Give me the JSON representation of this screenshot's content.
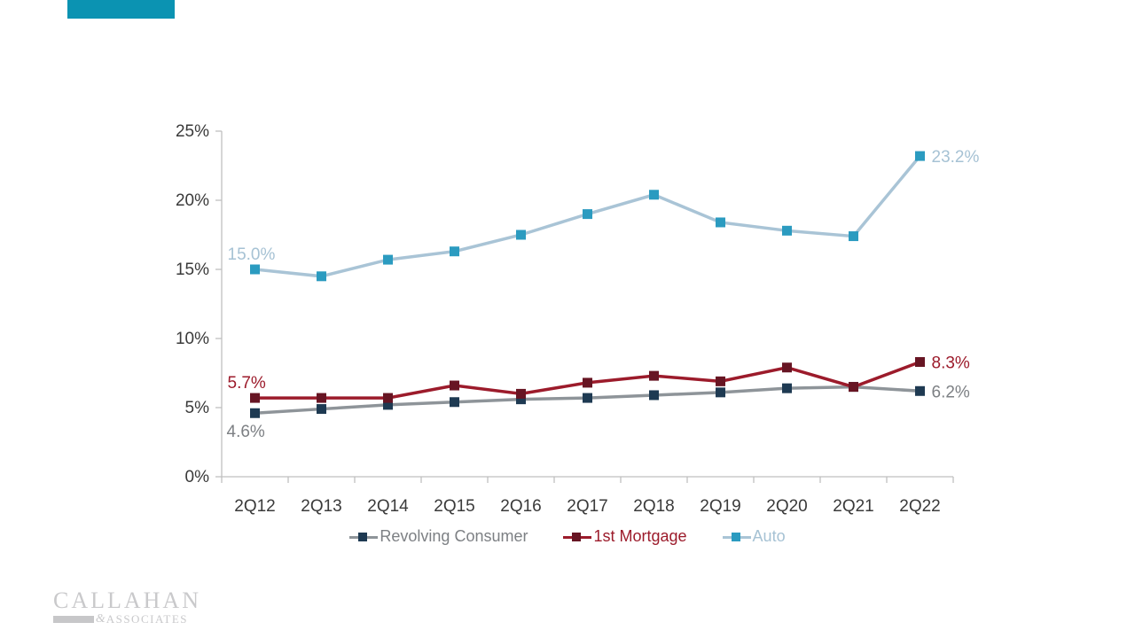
{
  "slide": {
    "accent_bar_color": "#0b93b2",
    "background_color": "#ffffff"
  },
  "logo": {
    "line1": "CALLAHAN",
    "ampersand": "&",
    "line2": "ASSOCIATES",
    "color": "#c9c9cb"
  },
  "chart_data": {
    "type": "line",
    "title": "",
    "xlabel": "",
    "ylabel": "",
    "categories": [
      "2Q12",
      "2Q13",
      "2Q14",
      "2Q15",
      "2Q16",
      "2Q17",
      "2Q18",
      "2Q19",
      "2Q20",
      "2Q21",
      "2Q22"
    ],
    "series": [
      {
        "name": "Revolving Consumer",
        "values": [
          4.6,
          4.9,
          5.2,
          5.4,
          5.6,
          5.7,
          5.9,
          6.1,
          6.4,
          6.5,
          6.2
        ],
        "line_color": "#8e9499",
        "marker_color": "#1e3a52",
        "label_color": "#7d8084",
        "point_labels": [
          {
            "point": "2Q12",
            "text": "4.6%",
            "placement": "below-left"
          },
          {
            "point": "2Q22",
            "text": "6.2%",
            "placement": "right"
          }
        ]
      },
      {
        "name": "1st Mortgage",
        "values": [
          5.7,
          5.7,
          5.7,
          6.6,
          6.0,
          6.8,
          7.3,
          6.9,
          7.9,
          6.5,
          8.3
        ],
        "line_color": "#9c1b2b",
        "marker_color": "#671523",
        "label_color": "#9c1b2b",
        "point_labels": [
          {
            "point": "2Q12",
            "text": "5.7%",
            "placement": "above-left"
          },
          {
            "point": "2Q22",
            "text": "8.3%",
            "placement": "right"
          }
        ]
      },
      {
        "name": "Auto",
        "values": [
          15.0,
          14.5,
          15.7,
          16.3,
          17.5,
          19.0,
          20.4,
          18.4,
          17.8,
          17.4,
          23.2
        ],
        "line_color": "#a9c4d6",
        "marker_color": "#2b9bc0",
        "label_color": "#a6c2d4",
        "point_labels": [
          {
            "point": "2Q12",
            "text": "15.0%",
            "placement": "above-left"
          },
          {
            "point": "2Q22",
            "text": "23.2%",
            "placement": "right"
          }
        ]
      }
    ],
    "ylim": [
      0,
      25
    ],
    "ytick_step": 5,
    "ytick_labels": [
      "0%",
      "5%",
      "10%",
      "15%",
      "20%",
      "25%"
    ],
    "grid": false,
    "legend_position": "bottom",
    "axis_color": "#bfbfbf",
    "tick_label_color": "#3a3a3a"
  }
}
